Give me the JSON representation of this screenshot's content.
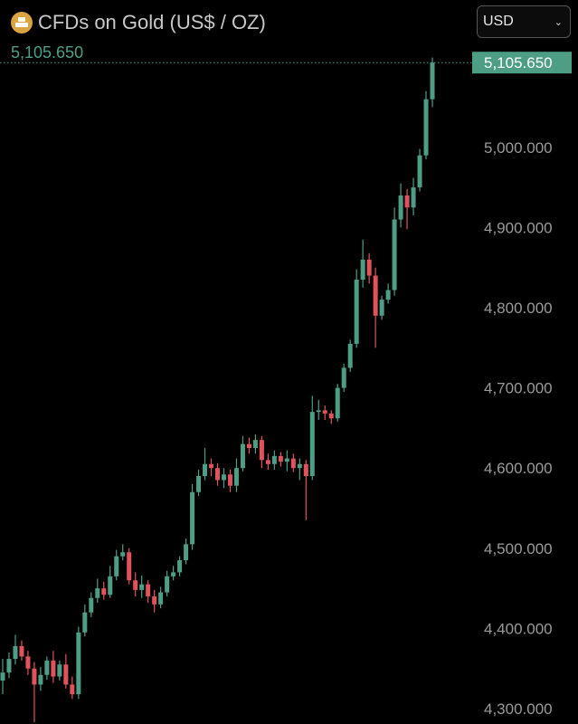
{
  "header": {
    "title": "CFDs on Gold (US$ / OZ)",
    "last_price": "5,105.650",
    "currency": "USD",
    "icon": "gold-bars-icon"
  },
  "chart_data": {
    "type": "candlestick",
    "title": "CFDs on Gold (US$ / OZ)",
    "ylim": [
      4285,
      5125
    ],
    "yticks": [
      "4,300.000",
      "4,400.000",
      "4,500.000",
      "4,600.000",
      "4,700.000",
      "4,800.000",
      "4,900.000",
      "5,000.000"
    ],
    "ytick_values": [
      4300,
      4400,
      4500,
      4600,
      4700,
      4800,
      4900,
      5000
    ],
    "last_price_label": "5,105.650",
    "last_price": 5105.65,
    "grid": false,
    "colors": {
      "up": "#4e9e86",
      "down": "#e0535d",
      "price_line": "#4e9e86"
    },
    "open": [
      4335,
      4345,
      4362,
      4378,
      4365,
      4350,
      4330,
      4342,
      4360,
      4340,
      4355,
      4330,
      4318,
      4395,
      4420,
      4438,
      4450,
      4442,
      4465,
      4490,
      4495,
      4460,
      4448,
      4455,
      4440,
      4430,
      4445,
      4465,
      4470,
      4485,
      4505,
      4570,
      4590,
      4605,
      4600,
      4585,
      4592,
      4578,
      4600,
      4630,
      4625,
      4635,
      4610,
      4605,
      4615,
      4608,
      4612,
      4600,
      4605,
      4590,
      4670,
      4672,
      4668,
      4662,
      4700,
      4725,
      4755,
      4835,
      4860,
      4840,
      4790,
      4810,
      4822,
      4910,
      4940,
      4925,
      4950,
      4990,
      5060
    ],
    "high": [
      4362,
      4370,
      4392,
      4385,
      4372,
      4358,
      4352,
      4365,
      4372,
      4360,
      4368,
      4340,
      4402,
      4430,
      4445,
      4462,
      4458,
      4478,
      4498,
      4505,
      4500,
      4470,
      4466,
      4460,
      4448,
      4452,
      4472,
      4478,
      4490,
      4512,
      4580,
      4598,
      4625,
      4612,
      4606,
      4600,
      4598,
      4612,
      4640,
      4638,
      4642,
      4640,
      4618,
      4622,
      4620,
      4622,
      4618,
      4612,
      4610,
      4690,
      4685,
      4678,
      4672,
      4705,
      4730,
      4760,
      4848,
      4885,
      4868,
      4850,
      4815,
      4830,
      4925,
      4955,
      4948,
      4962,
      4998,
      5070,
      5112
    ],
    "low": [
      4318,
      4338,
      4355,
      4360,
      4342,
      4283,
      4322,
      4336,
      4332,
      4335,
      4325,
      4312,
      4312,
      4390,
      4414,
      4432,
      4436,
      4438,
      4460,
      4485,
      4455,
      4440,
      4438,
      4432,
      4420,
      4425,
      4440,
      4460,
      4465,
      4480,
      4498,
      4565,
      4585,
      4590,
      4578,
      4575,
      4570,
      4570,
      4596,
      4618,
      4618,
      4600,
      4598,
      4598,
      4602,
      4596,
      4595,
      4585,
      4535,
      4585,
      4660,
      4660,
      4655,
      4658,
      4695,
      4720,
      4750,
      4825,
      4830,
      4750,
      4785,
      4805,
      4815,
      4900,
      4898,
      4915,
      4945,
      4985,
      5050
    ],
    "close": [
      4345,
      4362,
      4378,
      4365,
      4350,
      4330,
      4342,
      4360,
      4340,
      4355,
      4330,
      4318,
      4395,
      4420,
      4438,
      4450,
      4442,
      4465,
      4490,
      4495,
      4460,
      4448,
      4455,
      4440,
      4430,
      4445,
      4465,
      4470,
      4485,
      4505,
      4570,
      4590,
      4605,
      4600,
      4585,
      4592,
      4578,
      4600,
      4630,
      4625,
      4635,
      4610,
      4605,
      4615,
      4608,
      4612,
      4600,
      4605,
      4590,
      4670,
      4672,
      4668,
      4662,
      4700,
      4725,
      4755,
      4835,
      4860,
      4840,
      4790,
      4810,
      4822,
      4910,
      4940,
      4925,
      4950,
      4990,
      5060,
      5105.65
    ]
  }
}
